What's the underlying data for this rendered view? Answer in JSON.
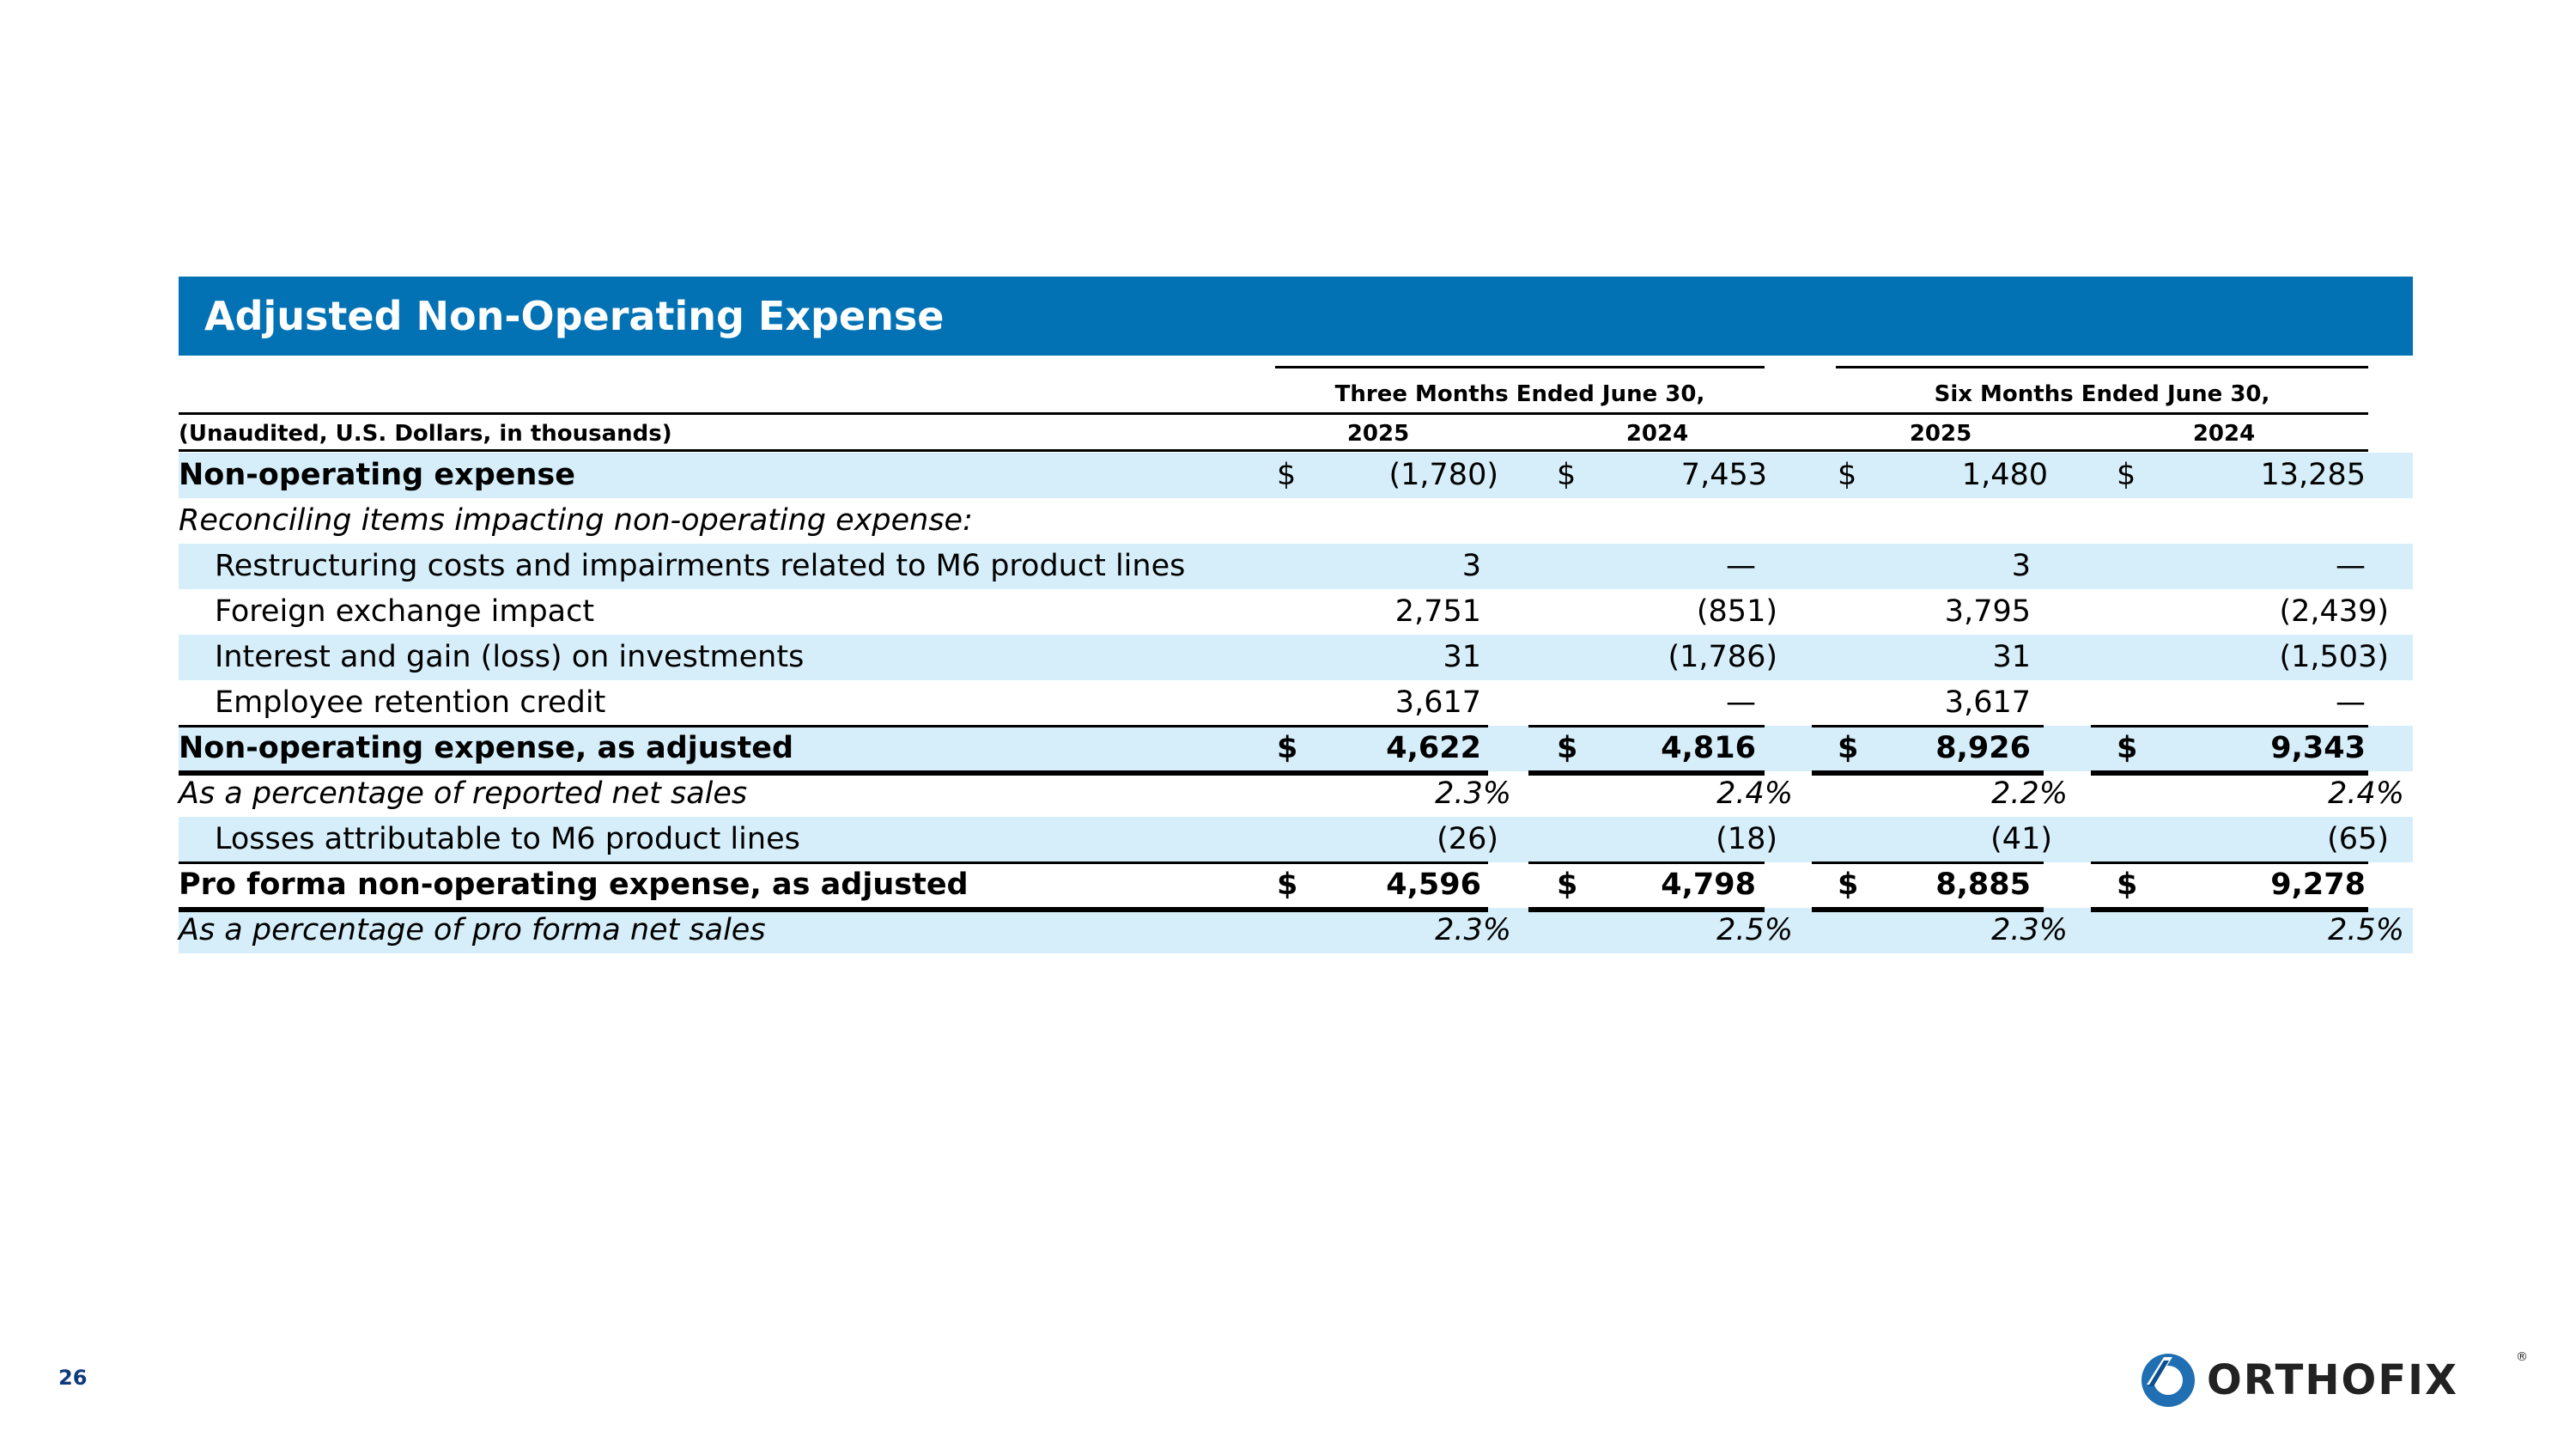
{
  "title": "Adjusted Non-Operating Expense",
  "header": {
    "unit_label": "(Unaudited, U.S. Dollars, in thousands)",
    "period_groups": [
      "Three Months Ended June 30,",
      "Six Months Ended June 30,"
    ],
    "years": [
      "2025",
      "2024",
      "2025",
      "2024"
    ]
  },
  "rows": [
    {
      "label": "Non-operating expense",
      "values": [
        "(1,780)",
        "7,453",
        "1,480",
        "13,285"
      ]
    },
    {
      "label": "Reconciling items impacting non-operating expense:"
    },
    {
      "label": "Restructuring costs and impairments related to M6 product lines",
      "values": [
        "3",
        "—",
        "3",
        "—"
      ]
    },
    {
      "label": "Foreign exchange impact",
      "values": [
        "2,751",
        "(851)",
        "3,795",
        "(2,439)"
      ]
    },
    {
      "label": "Interest and gain (loss) on investments",
      "values": [
        "31",
        "(1,786)",
        "31",
        "(1,503)"
      ]
    },
    {
      "label": "Employee retention credit",
      "values": [
        "3,617",
        "—",
        "3,617",
        "—"
      ]
    },
    {
      "label": "Non-operating expense, as adjusted",
      "values": [
        "4,622",
        "4,816",
        "8,926",
        "9,343"
      ]
    },
    {
      "label": "As a percentage of reported net sales",
      "values": [
        "2.3%",
        "2.4%",
        "2.2%",
        "2.4%"
      ]
    },
    {
      "label": "Losses attributable to M6 product lines",
      "values": [
        "(26)",
        "(18)",
        "(41)",
        "(65)"
      ]
    },
    {
      "label": "Pro forma non-operating expense, as adjusted",
      "values": [
        "4,596",
        "4,798",
        "8,885",
        "9,278"
      ]
    },
    {
      "label": "As a percentage of pro forma net sales",
      "values": [
        "2.3%",
        "2.5%",
        "2.3%",
        "2.5%"
      ]
    }
  ],
  "currency_symbol": "$",
  "footer": {
    "page_number": "26",
    "logo_text": "ORTHOFIX",
    "logo_reg": "®"
  }
}
